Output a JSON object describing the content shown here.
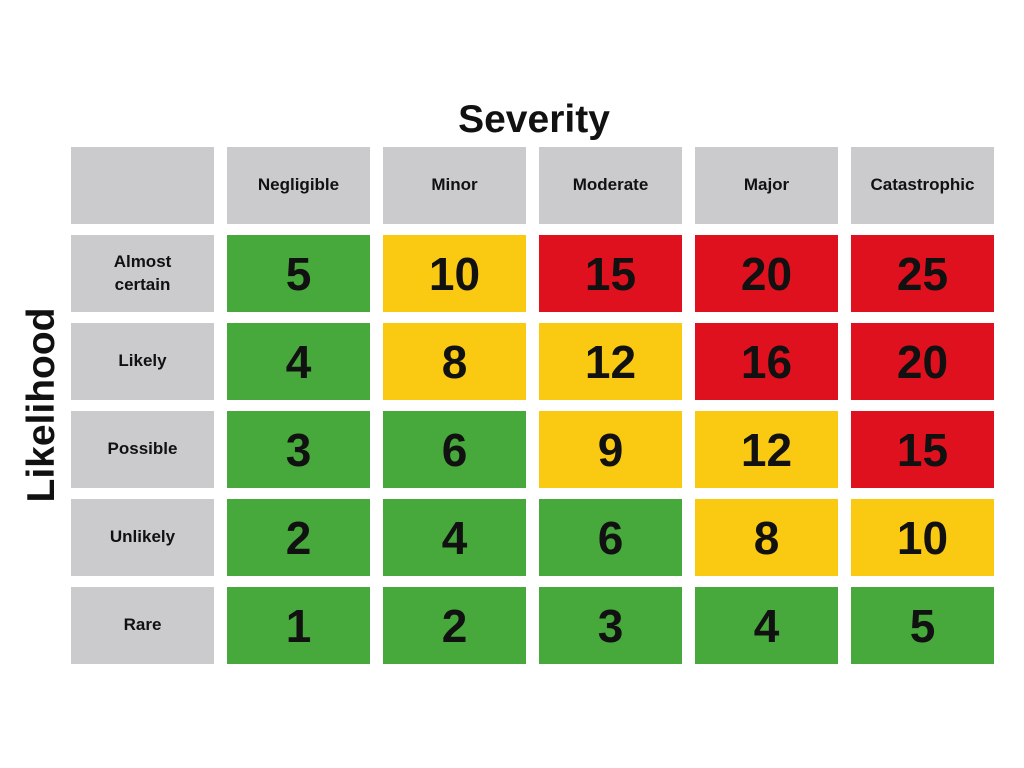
{
  "chart_data": {
    "type": "heatmap",
    "title": "Severity",
    "ylabel": "Likelihood",
    "columns": [
      "Negligible",
      "Minor",
      "Moderate",
      "Major",
      "Catastrophic"
    ],
    "rows": [
      {
        "label": "Almost certain",
        "values": [
          5,
          10,
          15,
          20,
          25
        ],
        "levels": [
          "low",
          "medium",
          "high",
          "high",
          "high"
        ]
      },
      {
        "label": "Likely",
        "values": [
          4,
          8,
          12,
          16,
          20
        ],
        "levels": [
          "low",
          "medium",
          "medium",
          "high",
          "high"
        ]
      },
      {
        "label": "Possible",
        "values": [
          3,
          6,
          9,
          12,
          15
        ],
        "levels": [
          "low",
          "low",
          "medium",
          "medium",
          "high"
        ]
      },
      {
        "label": "Unlikely",
        "values": [
          2,
          4,
          6,
          8,
          10
        ],
        "levels": [
          "low",
          "low",
          "low",
          "medium",
          "medium"
        ]
      },
      {
        "label": "Rare",
        "values": [
          1,
          2,
          3,
          4,
          5
        ],
        "levels": [
          "low",
          "low",
          "low",
          "low",
          "low"
        ]
      }
    ],
    "colors": {
      "low": "#47a83b",
      "medium": "#fac911",
      "high": "#e0111f",
      "header": "#cbcbcd"
    }
  }
}
